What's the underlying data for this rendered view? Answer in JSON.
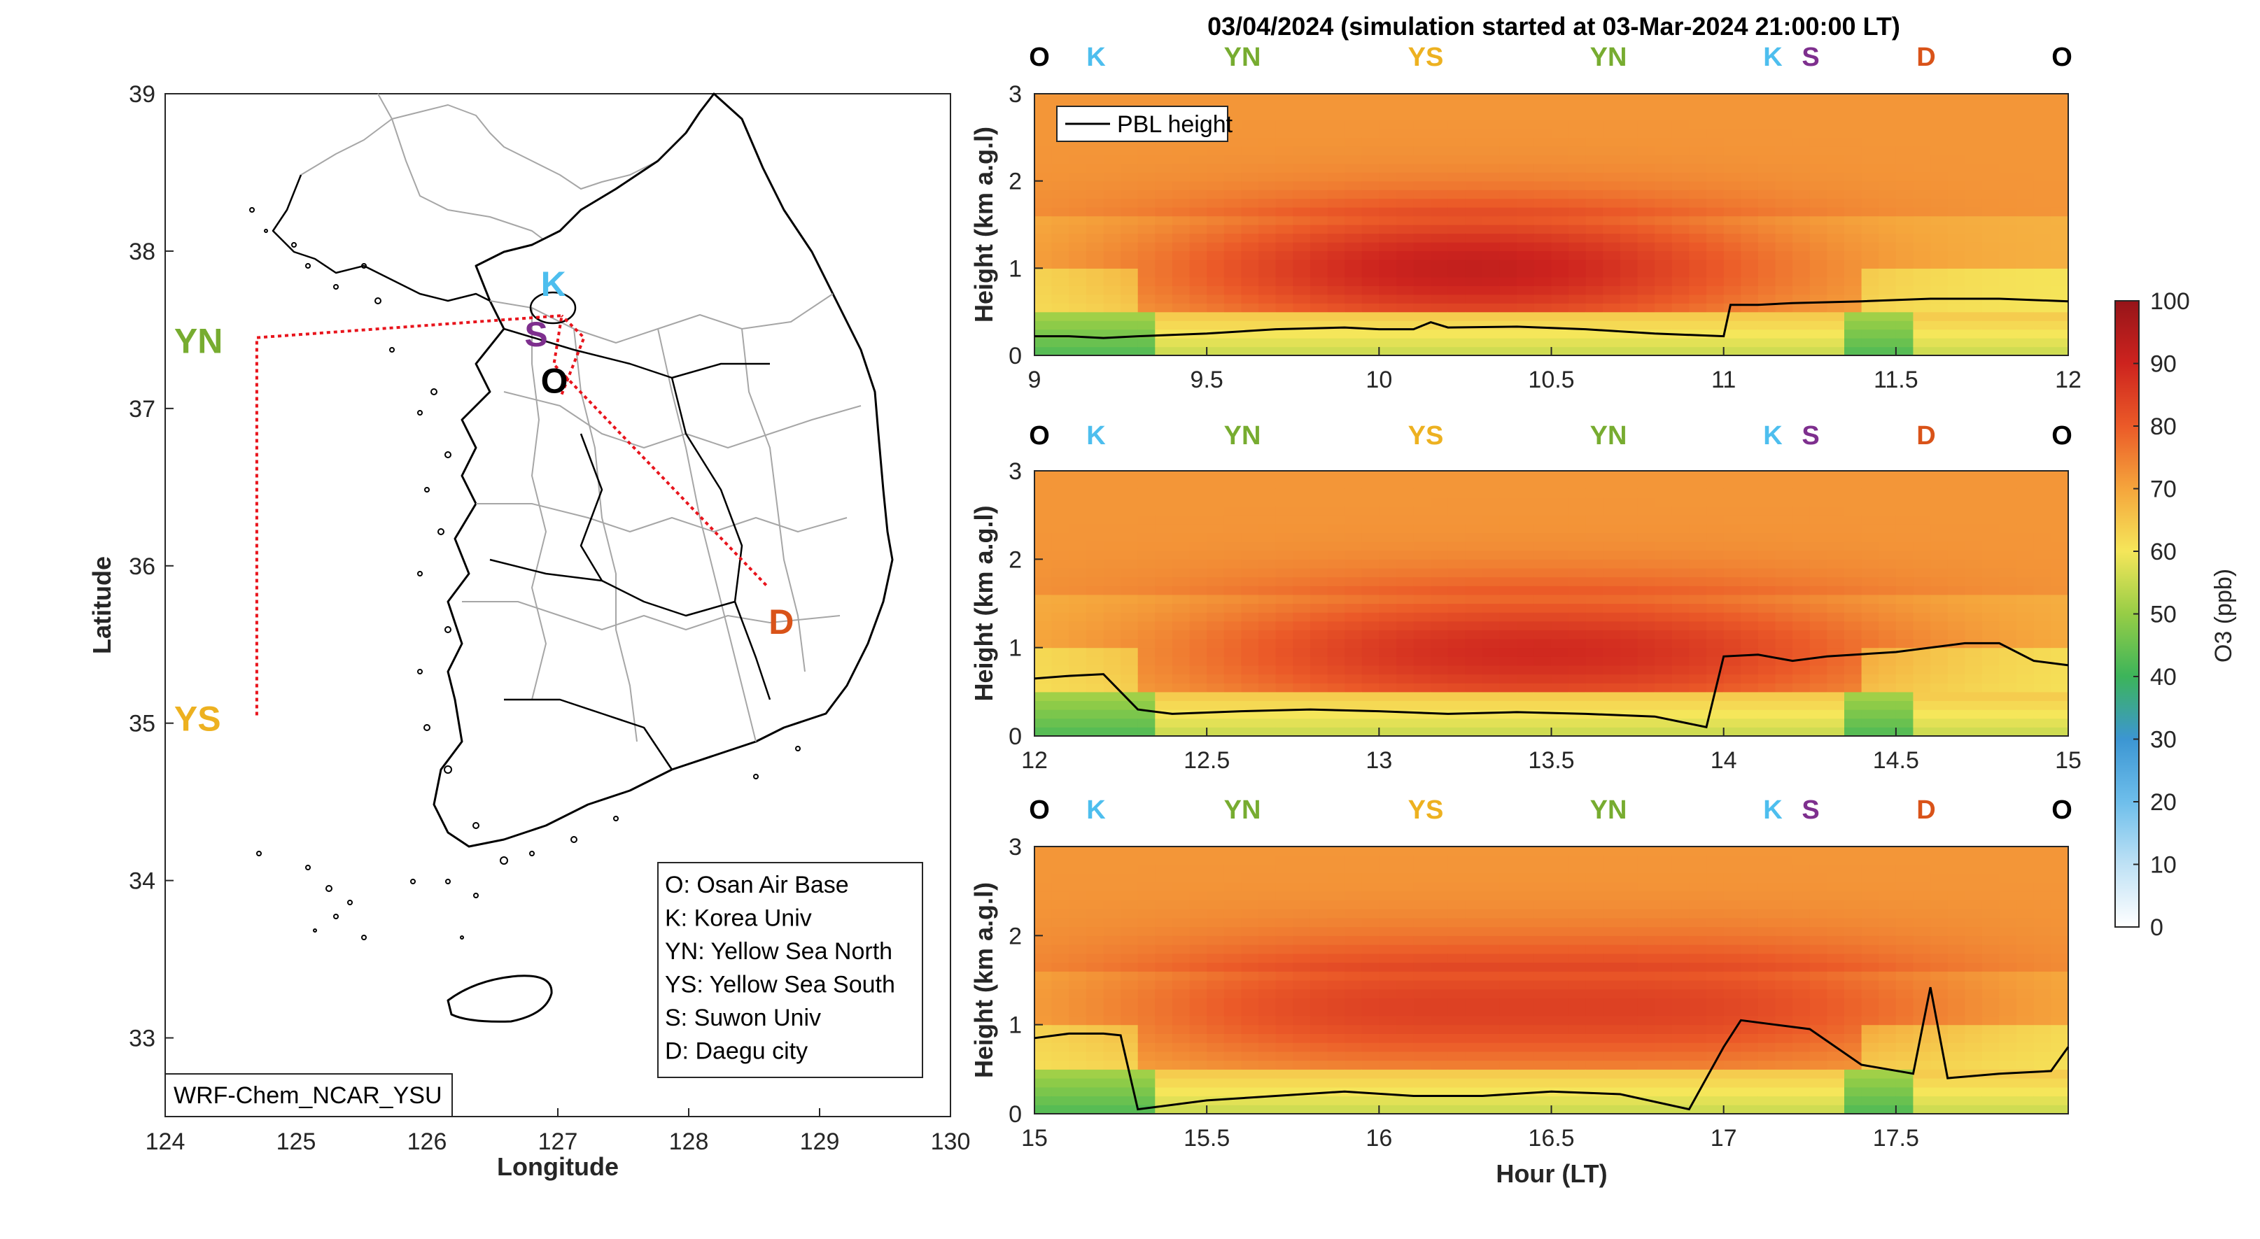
{
  "colors": {
    "O": "#000000",
    "K": "#4DBEEE",
    "YN": "#77AC30",
    "YS": "#EDB120",
    "S": "#7E2F8E",
    "D": "#D95319",
    "route": "#E8141C",
    "pbl": "#000000"
  },
  "map": {
    "model_label": "WRF-Chem_NCAR_YSU",
    "xlabel": "Longitude",
    "ylabel": "Latitude",
    "xticks": [
      "124",
      "125",
      "126",
      "127",
      "128",
      "129",
      "130"
    ],
    "yticks": [
      "33",
      "34",
      "35",
      "36",
      "37",
      "38",
      "39"
    ],
    "legend": [
      "O: Osan Air Base",
      "K: Korea Univ",
      "YN: Yellow Sea North",
      "YS: Yellow Sea South",
      "S: Suwon Univ",
      "D: Daegu city"
    ],
    "sites": [
      {
        "label": "O",
        "lon": 127.03,
        "lat": 37.09
      },
      {
        "label": "K",
        "lon": 127.03,
        "lat": 37.59
      },
      {
        "label": "YN",
        "lon": 124.7,
        "lat": 37.45
      },
      {
        "label": "YS",
        "lon": 124.7,
        "lat": 35.05
      },
      {
        "label": "S",
        "lon": 126.97,
        "lat": 37.28
      },
      {
        "label": "D",
        "lon": 128.6,
        "lat": 35.87
      }
    ]
  },
  "chart_data": {
    "type": "heatmap",
    "title": "03/04/2024 (simulation started at 03-Mar-2024 21:00:00 LT)",
    "xlabel": "Hour (LT)",
    "ylabel": "Height (km a.g.l)",
    "colorbar_label": "O3 (ppb)",
    "colorbar_ticks": [
      "0",
      "10",
      "20",
      "30",
      "40",
      "50",
      "60",
      "70",
      "80",
      "90",
      "100"
    ],
    "clim": [
      0,
      100
    ],
    "legend": [
      "PBL height"
    ],
    "site_sequence": [
      "O",
      "K",
      "YN",
      "YS",
      "YN",
      "K",
      "S",
      "D",
      "O"
    ],
    "panels": [
      {
        "xlim": [
          9,
          12
        ],
        "ylim": [
          0,
          3
        ],
        "xticks": [
          "9",
          "9.5",
          "10",
          "10.5",
          "11",
          "11.5",
          "12"
        ],
        "yticks": [
          "0",
          "1",
          "2",
          "3"
        ],
        "pbl_height": {
          "x": [
            9.0,
            9.1,
            9.2,
            9.3,
            9.5,
            9.7,
            9.9,
            10.0,
            10.1,
            10.15,
            10.2,
            10.4,
            10.6,
            10.8,
            11.0,
            11.02,
            11.1,
            11.2,
            11.4,
            11.6,
            11.8,
            12.0
          ],
          "y": [
            0.22,
            0.22,
            0.2,
            0.22,
            0.25,
            0.3,
            0.32,
            0.3,
            0.3,
            0.38,
            0.32,
            0.33,
            0.3,
            0.25,
            0.22,
            0.58,
            0.58,
            0.6,
            0.62,
            0.65,
            0.65,
            0.62
          ]
        }
      },
      {
        "xlim": [
          12,
          15
        ],
        "ylim": [
          0,
          3
        ],
        "xticks": [
          "12",
          "12.5",
          "13",
          "13.5",
          "14",
          "14.5",
          "15"
        ],
        "yticks": [
          "0",
          "1",
          "2",
          "3"
        ],
        "pbl_height": {
          "x": [
            12.0,
            12.1,
            12.2,
            12.3,
            12.4,
            12.6,
            12.8,
            13.0,
            13.2,
            13.4,
            13.6,
            13.8,
            13.95,
            14.0,
            14.1,
            14.2,
            14.3,
            14.5,
            14.7,
            14.8,
            14.9,
            15.0
          ],
          "y": [
            0.65,
            0.68,
            0.7,
            0.3,
            0.25,
            0.28,
            0.3,
            0.28,
            0.25,
            0.27,
            0.25,
            0.22,
            0.1,
            0.9,
            0.92,
            0.85,
            0.9,
            0.95,
            1.05,
            1.05,
            0.85,
            0.8
          ]
        }
      },
      {
        "xlim": [
          15,
          18
        ],
        "ylim": [
          0,
          3
        ],
        "xticks": [
          "15",
          "15.5",
          "16",
          "16.5",
          "17",
          "17.5"
        ],
        "yticks": [
          "0",
          "1",
          "2",
          "3"
        ],
        "pbl_height": {
          "x": [
            15.0,
            15.1,
            15.2,
            15.25,
            15.3,
            15.5,
            15.7,
            15.9,
            16.1,
            16.3,
            16.5,
            16.7,
            16.9,
            17.0,
            17.05,
            17.15,
            17.25,
            17.4,
            17.55,
            17.6,
            17.65,
            17.8,
            17.95,
            18.0
          ],
          "y": [
            0.85,
            0.9,
            0.9,
            0.88,
            0.05,
            0.15,
            0.2,
            0.25,
            0.2,
            0.2,
            0.25,
            0.22,
            0.05,
            0.75,
            1.05,
            1.0,
            0.95,
            0.55,
            0.45,
            1.42,
            0.4,
            0.45,
            0.48,
            0.75
          ]
        }
      }
    ]
  }
}
